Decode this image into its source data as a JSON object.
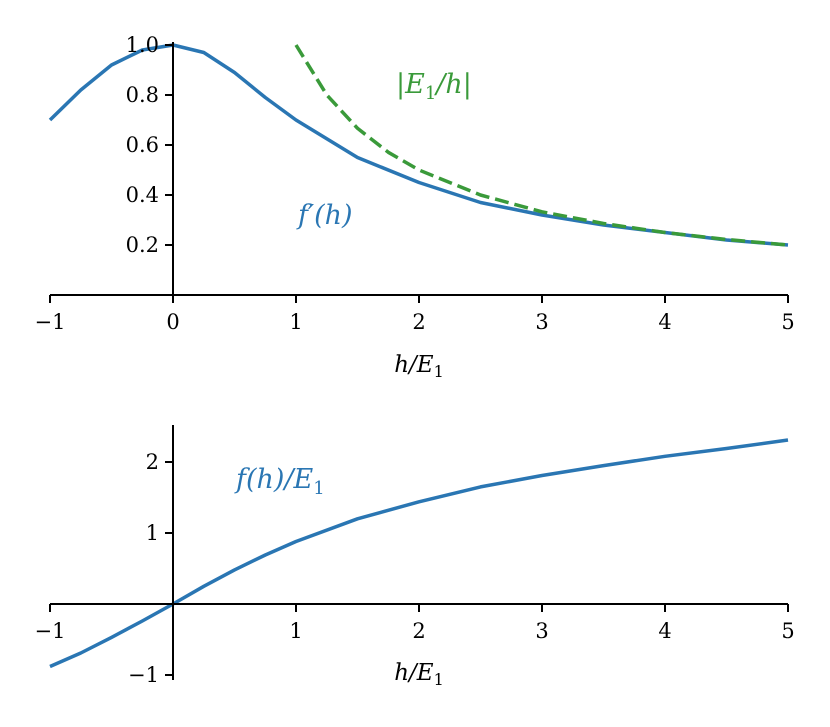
{
  "colors": {
    "blue": "#2a76b3",
    "green": "#3a9a3a",
    "axis": "#000000"
  },
  "chart_data": [
    {
      "type": "line",
      "xlabel": "h/E1",
      "xlim": [
        -1,
        5
      ],
      "ylim": [
        0,
        1
      ],
      "xticks": [
        "−1",
        "0",
        "1",
        "2",
        "3",
        "4",
        "5"
      ],
      "yticks": [
        "0.2",
        "0.4",
        "0.6",
        "0.8",
        "1.0"
      ],
      "series": [
        {
          "name": "f′(h)",
          "style": "solid",
          "color": "#2a76b3",
          "x": [
            -1,
            -0.75,
            -0.5,
            -0.25,
            0,
            0.25,
            0.5,
            0.75,
            1,
            1.5,
            2,
            2.5,
            3,
            3.5,
            4,
            4.5,
            5
          ],
          "y": [
            0.7,
            0.82,
            0.92,
            0.98,
            1.0,
            0.97,
            0.89,
            0.79,
            0.7,
            0.55,
            0.45,
            0.37,
            0.32,
            0.28,
            0.25,
            0.22,
            0.2
          ]
        },
        {
          "name": "|E1/h|",
          "style": "dashed",
          "color": "#3a9a3a",
          "x": [
            1,
            1.25,
            1.5,
            1.75,
            2,
            2.5,
            3,
            3.5,
            4,
            4.5,
            5
          ],
          "y": [
            1.0,
            0.8,
            0.667,
            0.571,
            0.5,
            0.4,
            0.333,
            0.286,
            0.25,
            0.222,
            0.2
          ]
        }
      ],
      "annotations": [
        {
          "text": "|E1/h|",
          "color": "#3a9a3a"
        },
        {
          "text": "f′(h)",
          "color": "#2a76b3"
        }
      ]
    },
    {
      "type": "line",
      "xlabel": "h/E1",
      "xlim": [
        -1,
        5
      ],
      "ylim": [
        -1.1,
        2.5
      ],
      "xticks": [
        "−1",
        "1",
        "2",
        "3",
        "4",
        "5"
      ],
      "yticks": [
        "−1",
        "1",
        "2"
      ],
      "series": [
        {
          "name": "f(h)/E1",
          "style": "solid",
          "color": "#2a76b3",
          "x": [
            -1,
            -0.75,
            -0.5,
            -0.25,
            0,
            0.25,
            0.5,
            0.75,
            1,
            1.5,
            2,
            2.5,
            3,
            3.5,
            4,
            4.5,
            5
          ],
          "y": [
            -0.88,
            -0.69,
            -0.47,
            -0.24,
            0,
            0.25,
            0.48,
            0.69,
            0.88,
            1.2,
            1.44,
            1.65,
            1.81,
            1.95,
            2.08,
            2.19,
            2.31
          ]
        }
      ],
      "annotations": [
        {
          "text": "f(h)/E1",
          "color": "#2a76b3"
        }
      ]
    }
  ]
}
